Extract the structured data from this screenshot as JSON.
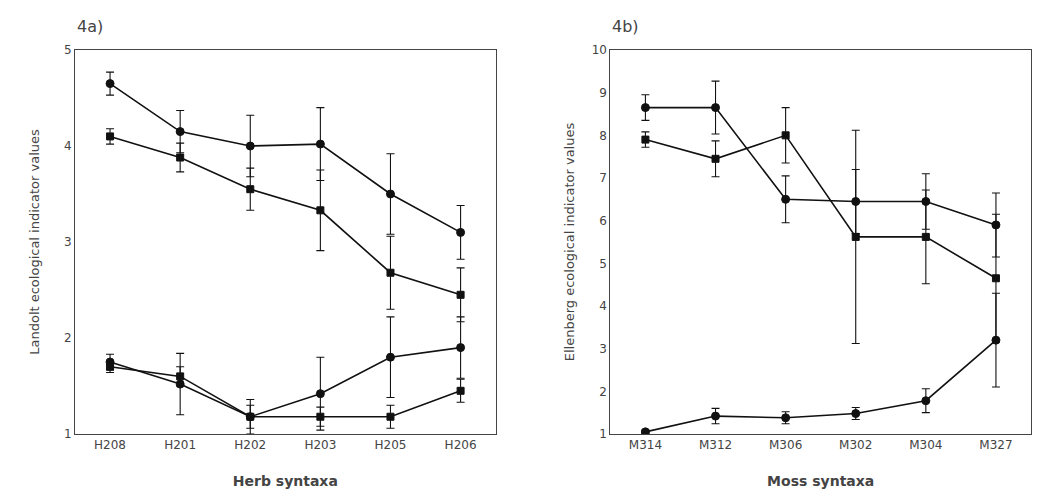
{
  "chart_data": [
    {
      "type": "line",
      "title": "4a)",
      "xlabel": "Herb syntaxa",
      "ylabel": "Landolt ecological indicator values",
      "categories": [
        "H208",
        "H201",
        "H202",
        "H203",
        "H205",
        "H206"
      ],
      "ylim": [
        1,
        5
      ],
      "yticks": [
        1,
        2,
        3,
        4,
        5
      ],
      "grid": false,
      "series": [
        {
          "color": "#111111",
          "marker": "circle",
          "line_style": "solid",
          "values": [
            4.65,
            4.15,
            4.0,
            4.02,
            3.5,
            3.1
          ],
          "yerr": [
            0.12,
            0.22,
            0.32,
            0.38,
            0.42,
            0.28
          ]
        },
        {
          "color": "#111111",
          "marker": "square",
          "line_style": "solid",
          "values": [
            4.1,
            3.88,
            3.55,
            3.33,
            2.68,
            2.45
          ],
          "yerr": [
            0.08,
            0.15,
            0.22,
            0.42,
            0.38,
            0.28
          ]
        },
        {
          "color": "#111111",
          "marker": "circle",
          "line_style": "solid",
          "values": [
            1.75,
            1.52,
            1.18,
            1.42,
            1.8,
            1.9
          ],
          "yerr": [
            0.08,
            0.32,
            0.18,
            0.38,
            0.42,
            0.32
          ]
        },
        {
          "color": "#111111",
          "marker": "square",
          "line_style": "solid",
          "values": [
            1.7,
            1.6,
            1.18,
            1.18,
            1.18,
            1.45
          ],
          "yerr": [
            0.06,
            0.1,
            0.12,
            0.1,
            0.12,
            0.12
          ]
        }
      ]
    },
    {
      "type": "line",
      "title": "4b)",
      "xlabel": "Moss syntaxa",
      "ylabel": "Ellenberg ecological indicator values",
      "categories": [
        "M314",
        "M312",
        "M306",
        "M302",
        "M304",
        "M327"
      ],
      "ylim": [
        1,
        10
      ],
      "yticks": [
        1,
        2,
        3,
        4,
        5,
        6,
        7,
        8,
        9,
        10
      ],
      "grid": false,
      "series": [
        {
          "color": "#111111",
          "marker": "circle",
          "line_style": "solid",
          "values": [
            8.65,
            8.65,
            6.5,
            6.45,
            6.45,
            5.9
          ],
          "yerr": [
            0.3,
            0.62,
            0.55,
            0.75,
            0.65,
            0.75
          ]
        },
        {
          "color": "#111111",
          "marker": "square",
          "line_style": "solid",
          "values": [
            7.9,
            7.45,
            8.0,
            5.62,
            5.62,
            4.65
          ],
          "yerr": [
            0.18,
            0.42,
            0.65,
            2.5,
            1.1,
            1.5
          ]
        },
        {
          "color": "#111111",
          "marker": "circle",
          "line_style": "solid",
          "values": [
            1.05,
            1.42,
            1.38,
            1.48,
            1.78,
            3.2
          ],
          "yerr": [
            0.04,
            0.18,
            0.14,
            0.14,
            0.28,
            1.1
          ]
        }
      ]
    }
  ]
}
